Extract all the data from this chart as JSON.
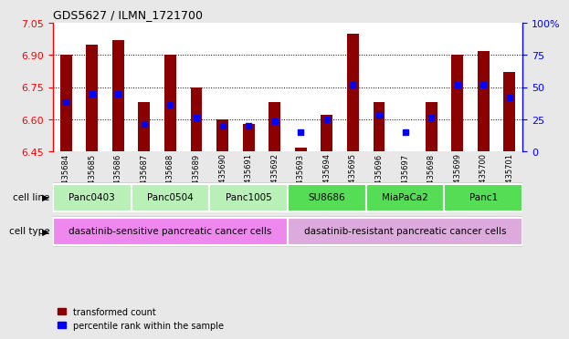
{
  "title": "GDS5627 / ILMN_1721700",
  "samples": [
    "GSM1435684",
    "GSM1435685",
    "GSM1435686",
    "GSM1435687",
    "GSM1435688",
    "GSM1435689",
    "GSM1435690",
    "GSM1435691",
    "GSM1435692",
    "GSM1435693",
    "GSM1435694",
    "GSM1435695",
    "GSM1435696",
    "GSM1435697",
    "GSM1435698",
    "GSM1435699",
    "GSM1435700",
    "GSM1435701"
  ],
  "red_values": [
    6.9,
    6.95,
    6.97,
    6.68,
    6.9,
    6.75,
    6.6,
    6.58,
    6.68,
    6.47,
    6.62,
    7.0,
    6.68,
    6.45,
    6.68,
    6.9,
    6.92,
    6.82
  ],
  "blue_values": [
    6.68,
    6.72,
    6.72,
    6.58,
    6.67,
    6.61,
    6.57,
    6.57,
    6.59,
    6.54,
    6.6,
    6.76,
    6.62,
    6.54,
    6.61,
    6.76,
    6.76,
    6.7
  ],
  "ymin": 6.45,
  "ymax": 7.05,
  "y_ticks": [
    6.45,
    6.6,
    6.75,
    6.9,
    7.05
  ],
  "y_right_ticks": [
    0,
    25,
    50,
    75,
    100
  ],
  "cell_lines": [
    {
      "label": "Panc0403",
      "start": 0,
      "end": 3,
      "color": "#b8f0b8"
    },
    {
      "label": "Panc0504",
      "start": 3,
      "end": 6,
      "color": "#b8f0b8"
    },
    {
      "label": "Panc1005",
      "start": 6,
      "end": 9,
      "color": "#b8f0b8"
    },
    {
      "label": "SU8686",
      "start": 9,
      "end": 12,
      "color": "#55dd55"
    },
    {
      "label": "MiaPaCa2",
      "start": 12,
      "end": 15,
      "color": "#55dd55"
    },
    {
      "label": "Panc1",
      "start": 15,
      "end": 18,
      "color": "#55dd55"
    }
  ],
  "cell_types": [
    {
      "label": "dasatinib-sensitive pancreatic cancer cells",
      "start": 0,
      "end": 9,
      "color": "#ee88ee"
    },
    {
      "label": "dasatinib-resistant pancreatic cancer cells",
      "start": 9,
      "end": 18,
      "color": "#ddaadd"
    }
  ],
  "bar_width": 0.45,
  "blue_marker_size": 4,
  "grid_color": "black",
  "background_color": "#e8e8e8",
  "plot_bg_color": "white",
  "label_bg_color": "#d0d0d0"
}
